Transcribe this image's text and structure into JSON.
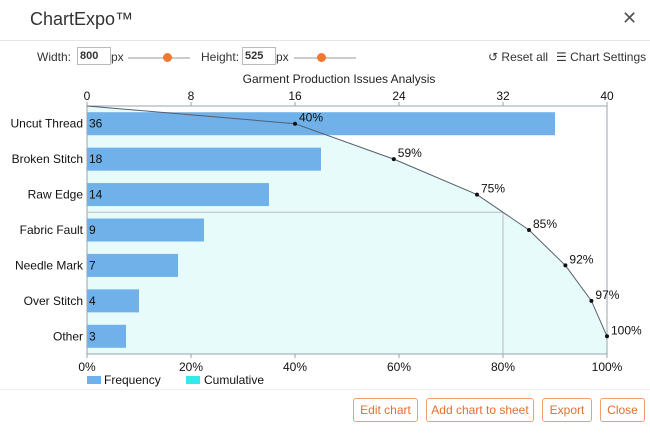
{
  "app": {
    "title": "ChartExpo™"
  },
  "toolbar": {
    "width_label": "Width:",
    "width_value": "800",
    "width_unit": "px",
    "height_label": "Height:",
    "height_value": "525",
    "height_unit": "px",
    "reset_label": "Reset all",
    "settings_label": "Chart Settings"
  },
  "footer": {
    "edit_label": "Edit chart",
    "add_label": "Add chart to sheet",
    "export_label": "Export",
    "close_label": "Close"
  },
  "colors": {
    "bar": "#6fb1e8",
    "cumulative_fill": "#e8fbfb",
    "line": "#555f6e",
    "accent": "#f07830"
  },
  "chart_data": {
    "type": "bar",
    "title": "Garment  Production Issues Analysis",
    "categories": [
      "Uncut Thread",
      "Broken Stitch",
      "Raw Edge",
      "Fabric Fault",
      "Needle Mark",
      "Over Stitch",
      "Other"
    ],
    "values": [
      36,
      18,
      14,
      9,
      7,
      4,
      3
    ],
    "top_axis": {
      "range": [
        0,
        40
      ],
      "ticks": [
        "0",
        "8",
        "16",
        "24",
        "32",
        "40"
      ]
    },
    "bottom_axis": {
      "range": [
        0,
        100
      ],
      "ticks": [
        "0%",
        "20%",
        "40%",
        "60%",
        "80%",
        "100%"
      ]
    },
    "cumulative": [
      40,
      59,
      75,
      85,
      92,
      97,
      100
    ],
    "cumulative_labels": [
      "40%",
      "59%",
      "75%",
      "85%",
      "92%",
      "97%",
      "100%"
    ],
    "threshold": 80,
    "legend": [
      "Frequency",
      "Cumulative"
    ],
    "legend_position": "bottom-left"
  }
}
